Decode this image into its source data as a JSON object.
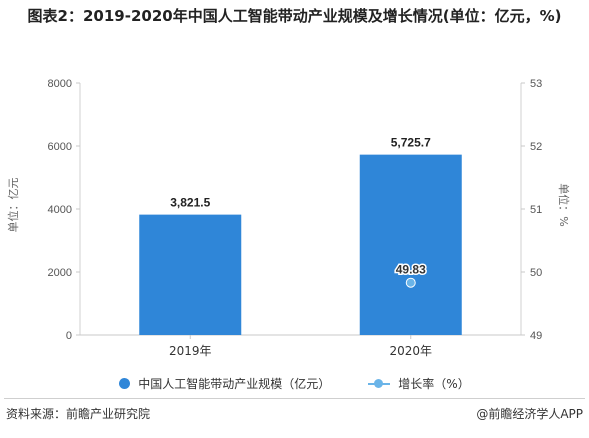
{
  "title": "图表2：2019-2020年中国人工智能带动产业规模及增长情况(单位：亿元，%)",
  "chart_data": {
    "type": "bar",
    "categories": [
      "2019年",
      "2020年"
    ],
    "series": [
      {
        "name": "中国人工智能带动产业规模（亿元）",
        "values": [
          3821.5,
          5725.7
        ],
        "value_labels": [
          "3,821.5",
          "5,725.7"
        ],
        "color": "#2f86d8",
        "axis": "left",
        "type": "bar"
      },
      {
        "name": "增长率（%）",
        "values": [
          null,
          49.83
        ],
        "value_labels": [
          "",
          "49.83"
        ],
        "color": "#6ab4e8",
        "axis": "right",
        "type": "line"
      }
    ],
    "ylabel_left": "单位：亿元",
    "ylabel_right": "单位：%",
    "ylim_left": [
      0,
      8000
    ],
    "yticks_left": [
      "0",
      "2000",
      "4000",
      "6000",
      "8000"
    ],
    "ylim_right": [
      49,
      53
    ],
    "yticks_right": [
      "49",
      "50",
      "51",
      "52",
      "53"
    ],
    "grid": false,
    "legend_position": "bottom"
  },
  "footer": {
    "source": "资料来源：前瞻产业研究院",
    "credit": "@前瞻经济学人APP"
  }
}
